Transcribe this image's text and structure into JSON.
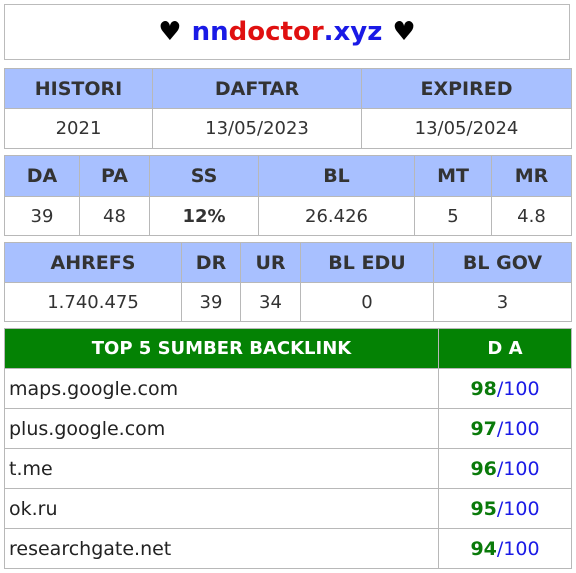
{
  "title": {
    "heart_left": "♥",
    "part1": "nn",
    "part2": "doctor",
    "part3": ".xyz",
    "heart_right": "♥"
  },
  "domain_info": {
    "headers": [
      "HISTORI",
      "DAFTAR",
      "EXPIRED"
    ],
    "values": [
      "2021",
      "13/05/2023",
      "13/05/2024"
    ]
  },
  "metrics": {
    "headers": [
      "DA",
      "PA",
      "SS",
      "BL",
      "MT",
      "MR"
    ],
    "values": [
      "39",
      "48",
      "12%",
      "26.426",
      "5",
      "4.8"
    ]
  },
  "ahrefs": {
    "headers": [
      "AHREFS",
      "DR",
      "UR",
      "BL EDU",
      "BL GOV"
    ],
    "values": [
      "1.740.475",
      "39",
      "34",
      "0",
      "3"
    ]
  },
  "backlinks": {
    "header_source": "TOP 5 SUMBER BACKLINK",
    "header_da": "D A",
    "separator": "/",
    "max": "100",
    "rows": [
      {
        "site": "maps.google.com",
        "da": "98"
      },
      {
        "site": "plus.google.com",
        "da": "97"
      },
      {
        "site": "t.me",
        "da": "96"
      },
      {
        "site": "ok.ru",
        "da": "95"
      },
      {
        "site": "researchgate.net",
        "da": "94"
      }
    ]
  },
  "colors": {
    "header_bg": "#a8c0ff",
    "backlink_header_bg": "#048204",
    "ss_value": "#1bc8c8",
    "title_blue": "#1a1ae6",
    "title_red": "#e01010"
  }
}
